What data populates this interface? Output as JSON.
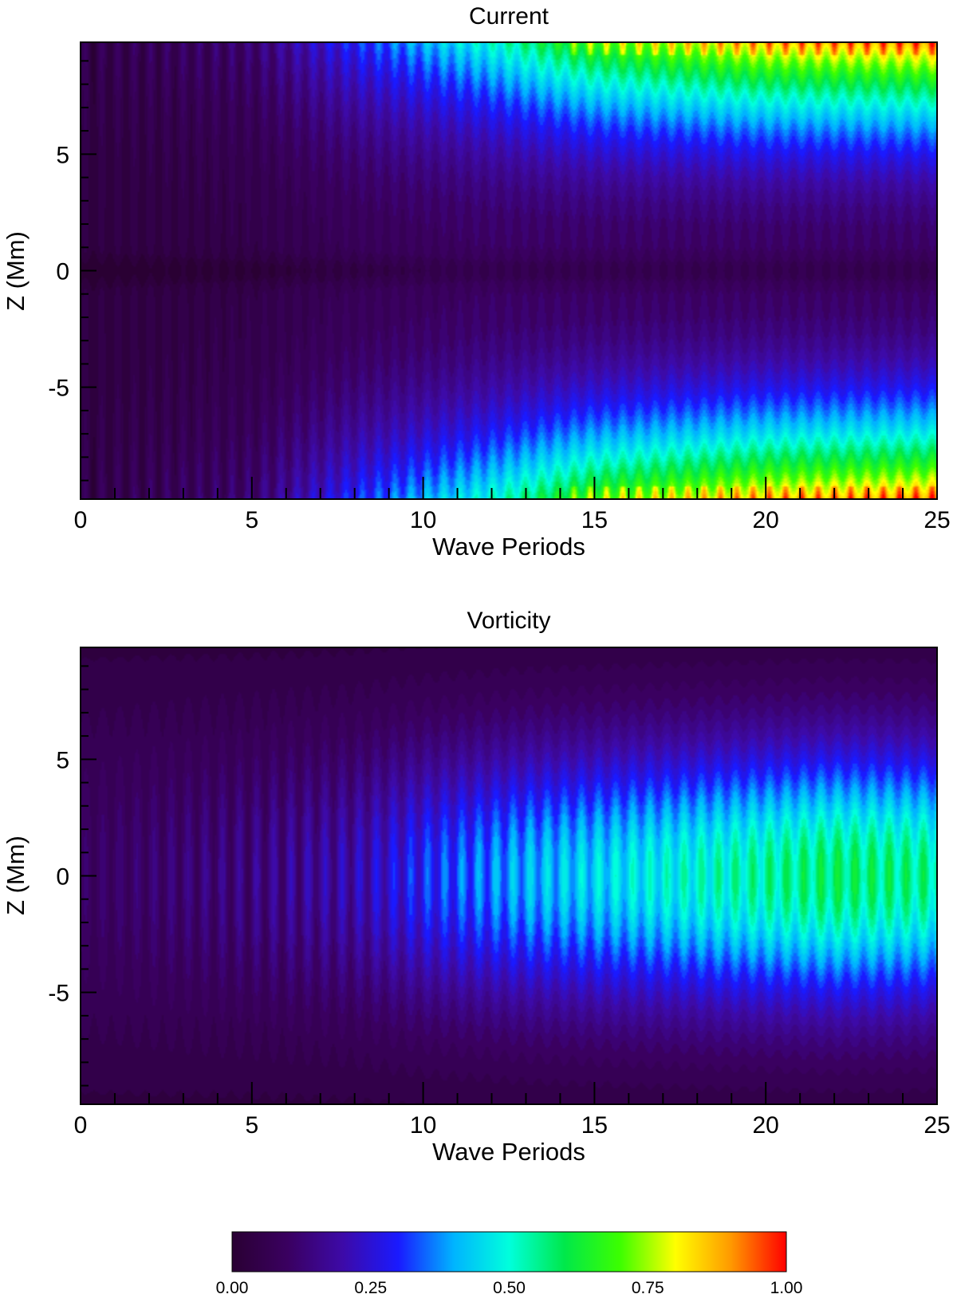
{
  "chart_data": [
    {
      "type": "heatmap",
      "title": "Current",
      "xlabel": "Wave Periods",
      "ylabel": "Z (Mm)",
      "xlim": [
        0,
        25
      ],
      "ylim": [
        -9.8,
        9.8
      ],
      "xticks": [
        0,
        5,
        10,
        15,
        20,
        25
      ],
      "xtick_labels": [
        "0",
        "5",
        "10",
        "15",
        "20",
        "25"
      ],
      "yticks": [
        -5,
        0,
        5
      ],
      "ytick_labels": [
        "-5",
        "0",
        "5"
      ],
      "value_range": [
        0,
        1
      ],
      "grid": false,
      "description_profile": [
        {
          "x": 0,
          "edge": 0.05,
          "mid": 0.03
        },
        {
          "x": 5,
          "edge": 0.12,
          "mid": 0.05
        },
        {
          "x": 8,
          "edge": 0.3,
          "mid": 0.08
        },
        {
          "x": 12,
          "edge": 0.5,
          "mid": 0.1
        },
        {
          "x": 15,
          "edge": 0.7,
          "mid": 0.1
        },
        {
          "x": 20,
          "edge": 0.85,
          "mid": 0.1
        },
        {
          "x": 25,
          "edge": 0.9,
          "mid": 0.1
        }
      ]
    },
    {
      "type": "heatmap",
      "title": "Vorticity",
      "xlabel": "Wave Periods",
      "ylabel": "Z (Mm)",
      "xlim": [
        0,
        25
      ],
      "ylim": [
        -9.8,
        9.8
      ],
      "xticks": [
        0,
        5,
        10,
        15,
        20,
        25
      ],
      "xtick_labels": [
        "0",
        "5",
        "10",
        "15",
        "20",
        "25"
      ],
      "yticks": [
        -5,
        0,
        5
      ],
      "ytick_labels": [
        "-5",
        "0",
        "5"
      ],
      "value_range": [
        0,
        1
      ],
      "grid": false,
      "description_profile": [
        {
          "x": 0,
          "center": 0.1
        },
        {
          "x": 5,
          "center": 0.14
        },
        {
          "x": 8,
          "center": 0.2
        },
        {
          "x": 10,
          "center": 0.3
        },
        {
          "x": 13,
          "center": 0.4
        },
        {
          "x": 17,
          "center": 0.48
        },
        {
          "x": 22,
          "center": 0.58
        },
        {
          "x": 25,
          "center": 0.55
        }
      ]
    }
  ],
  "colorbar": {
    "ticks": [
      0,
      0.25,
      0.5,
      0.75,
      1
    ],
    "tick_labels": [
      "0.00",
      "0.25",
      "0.50",
      "0.75",
      "1.00"
    ],
    "colors": [
      "#2a0033",
      "#3a0060",
      "#3d0aa8",
      "#1a1aff",
      "#00b4ff",
      "#00ffdc",
      "#00e84a",
      "#3cff00",
      "#ffff00",
      "#ff9900",
      "#ff0000"
    ]
  }
}
